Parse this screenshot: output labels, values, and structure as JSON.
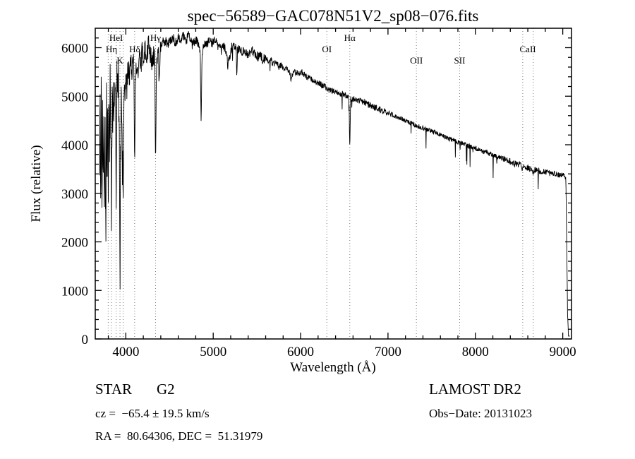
{
  "annotations": {
    "object_type": "STAR",
    "subclass": "G2",
    "survey": "LAMOST DR2",
    "cz": "cz =  −65.4 ± 19.5 km/s",
    "obs_date": "Obs−Date: 20131023",
    "ra_dec": "RA =  80.64306, DEC =  51.31979"
  },
  "chart_data": {
    "type": "line",
    "title": "spec−56589−GAC078N51V2_sp08−076.fits",
    "xlabel": "Wavelength (Å)",
    "ylabel": "Flux (relative)",
    "xlim": [
      3650,
      9100
    ],
    "ylim": [
      0,
      6400
    ],
    "x_ticks": [
      4000,
      5000,
      6000,
      7000,
      8000,
      9000
    ],
    "y_ticks": [
      0,
      1000,
      2000,
      3000,
      4000,
      5000,
      6000
    ],
    "x_minor_step": 200,
    "y_minor_step": 200,
    "grid": false,
    "legend": "none",
    "line_color": "#000000",
    "spectral_lines": [
      {
        "label": "",
        "wavelength": 3798,
        "row": 0,
        "draw_line": true
      },
      {
        "label": "Hη",
        "wavelength": 3835,
        "row": 1,
        "draw_line": true
      },
      {
        "label": "HeI",
        "wavelength": 3889,
        "row": 0,
        "draw_line": true
      },
      {
        "label": "K",
        "wavelength": 3933,
        "row": 2,
        "draw_line": true
      },
      {
        "label": "",
        "wavelength": 3969,
        "row": 2,
        "draw_line": true
      },
      {
        "label": "Hδ",
        "wavelength": 4101,
        "row": 1,
        "draw_line": true
      },
      {
        "label": "Hγ",
        "wavelength": 4340,
        "row": 0,
        "draw_line": true
      },
      {
        "label": "OI",
        "wavelength": 6300,
        "row": 1,
        "draw_line": true
      },
      {
        "label": "Hα",
        "wavelength": 6563,
        "row": 0,
        "draw_line": true
      },
      {
        "label": "OII",
        "wavelength": 7325,
        "row": 2,
        "draw_line": true
      },
      {
        "label": "SII",
        "wavelength": 7820,
        "row": 2,
        "draw_line": true
      },
      {
        "label": "CaII",
        "wavelength": 8600,
        "row": 1,
        "draw_line": false
      },
      {
        "label": "",
        "wavelength": 8542,
        "row": 0,
        "draw_line": true
      },
      {
        "label": "",
        "wavelength": 8662,
        "row": 0,
        "draw_line": true
      }
    ],
    "noise_seed": 20131023,
    "noise_regions": [
      {
        "from": 3650,
        "to": 3965,
        "amp": 650
      },
      {
        "from": 3965,
        "to": 4400,
        "amp": 240
      },
      {
        "from": 4400,
        "to": 5600,
        "amp": 100
      },
      {
        "from": 5600,
        "to": 7000,
        "amp": 65
      },
      {
        "from": 7000,
        "to": 8300,
        "amp": 50
      },
      {
        "from": 8300,
        "to": 9040,
        "amp": 65
      },
      {
        "from": 9040,
        "to": 9100,
        "amp": 20
      }
    ],
    "continuum_points": [
      [
        3700,
        3200
      ],
      [
        3706,
        5100
      ],
      [
        3712,
        2400
      ],
      [
        3719,
        5600
      ],
      [
        3726,
        2000
      ],
      [
        3733,
        4600
      ],
      [
        3740,
        3000
      ],
      [
        3748,
        5200
      ],
      [
        3756,
        2600
      ],
      [
        3763,
        4400
      ],
      [
        3770,
        1800
      ],
      [
        3778,
        4800
      ],
      [
        3786,
        3400
      ],
      [
        3792,
        5200
      ],
      [
        3798,
        2900
      ],
      [
        3806,
        5000
      ],
      [
        3813,
        4000
      ],
      [
        3820,
        5300
      ],
      [
        3828,
        4500
      ],
      [
        3835,
        2700
      ],
      [
        3843,
        4900
      ],
      [
        3851,
        4300
      ],
      [
        3858,
        5400
      ],
      [
        3866,
        4600
      ],
      [
        3874,
        5600
      ],
      [
        3882,
        4800
      ],
      [
        3889,
        3300
      ],
      [
        3897,
        5300
      ],
      [
        3905,
        4700
      ],
      [
        3913,
        5500
      ],
      [
        3921,
        4400
      ],
      [
        3928,
        3500
      ],
      [
        3933,
        1200
      ],
      [
        3940,
        3800
      ],
      [
        3948,
        4900
      ],
      [
        3955,
        4200
      ],
      [
        3962,
        3400
      ],
      [
        3969,
        2800
      ],
      [
        3977,
        4600
      ],
      [
        3985,
        5400
      ],
      [
        3993,
        5000
      ],
      [
        4000,
        5600
      ],
      [
        4012,
        5100
      ],
      [
        4025,
        5700
      ],
      [
        4040,
        5300
      ],
      [
        4055,
        5800
      ],
      [
        4070,
        5500
      ],
      [
        4085,
        5900
      ],
      [
        4094,
        5500
      ],
      [
        4101,
        3400
      ],
      [
        4110,
        5500
      ],
      [
        4125,
        5700
      ],
      [
        4140,
        5500
      ],
      [
        4155,
        5800
      ],
      [
        4170,
        5600
      ],
      [
        4185,
        5900
      ],
      [
        4200,
        5700
      ],
      [
        4220,
        6000
      ],
      [
        4240,
        5800
      ],
      [
        4260,
        6050
      ],
      [
        4280,
        5900
      ],
      [
        4300,
        5750
      ],
      [
        4318,
        5850
      ],
      [
        4330,
        5800
      ],
      [
        4340,
        3450
      ],
      [
        4352,
        5750
      ],
      [
        4370,
        5950
      ],
      [
        4383,
        5250
      ],
      [
        4396,
        5950
      ],
      [
        4420,
        6100
      ],
      [
        4450,
        6150
      ],
      [
        4480,
        6050
      ],
      [
        4510,
        6150
      ],
      [
        4540,
        6200
      ],
      [
        4570,
        6100
      ],
      [
        4600,
        6200
      ],
      [
        4630,
        6150
      ],
      [
        4660,
        6250
      ],
      [
        4690,
        6150
      ],
      [
        4720,
        6250
      ],
      [
        4750,
        6150
      ],
      [
        4780,
        6100
      ],
      [
        4810,
        6150
      ],
      [
        4840,
        6050
      ],
      [
        4852,
        5900
      ],
      [
        4861,
        4400
      ],
      [
        4872,
        5900
      ],
      [
        4900,
        6100
      ],
      [
        4930,
        6050
      ],
      [
        4960,
        6150
      ],
      [
        4990,
        6100
      ],
      [
        5020,
        6150
      ],
      [
        5050,
        6050
      ],
      [
        5080,
        6000
      ],
      [
        5110,
        6050
      ],
      [
        5140,
        5950
      ],
      [
        5167,
        5650
      ],
      [
        5180,
        5750
      ],
      [
        5210,
        6000
      ],
      [
        5240,
        6050
      ],
      [
        5264,
        5950
      ],
      [
        5270,
        5450
      ],
      [
        5278,
        5950
      ],
      [
        5300,
        6000
      ],
      [
        5330,
        5900
      ],
      [
        5360,
        5950
      ],
      [
        5390,
        5850
      ],
      [
        5420,
        5900
      ],
      [
        5450,
        5950
      ],
      [
        5480,
        5850
      ],
      [
        5510,
        5800
      ],
      [
        5540,
        5850
      ],
      [
        5570,
        5750
      ],
      [
        5600,
        5800
      ],
      [
        5630,
        5700
      ],
      [
        5660,
        5750
      ],
      [
        5690,
        5650
      ],
      [
        5720,
        5700
      ],
      [
        5750,
        5600
      ],
      [
        5780,
        5650
      ],
      [
        5810,
        5550
      ],
      [
        5840,
        5600
      ],
      [
        5880,
        5450
      ],
      [
        5893,
        5300
      ],
      [
        5905,
        5450
      ],
      [
        5940,
        5500
      ],
      [
        5980,
        5450
      ],
      [
        6020,
        5500
      ],
      [
        6060,
        5400
      ],
      [
        6100,
        5380
      ],
      [
        6140,
        5320
      ],
      [
        6180,
        5300
      ],
      [
        6220,
        5250
      ],
      [
        6260,
        5220
      ],
      [
        6300,
        5150
      ],
      [
        6340,
        5120
      ],
      [
        6380,
        5100
      ],
      [
        6420,
        5080
      ],
      [
        6460,
        5050
      ],
      [
        6500,
        5030
      ],
      [
        6540,
        5000
      ],
      [
        6555,
        4950
      ],
      [
        6563,
        3900
      ],
      [
        6572,
        4950
      ],
      [
        6610,
        4950
      ],
      [
        6650,
        4920
      ],
      [
        6690,
        4900
      ],
      [
        6730,
        4870
      ],
      [
        6770,
        4830
      ],
      [
        6810,
        4800
      ],
      [
        6850,
        4770
      ],
      [
        6890,
        4740
      ],
      [
        6930,
        4710
      ],
      [
        6970,
        4680
      ],
      [
        7010,
        4650
      ],
      [
        7060,
        4610
      ],
      [
        7110,
        4570
      ],
      [
        7160,
        4530
      ],
      [
        7210,
        4490
      ],
      [
        7260,
        4450
      ],
      [
        7310,
        4410
      ],
      [
        7360,
        4370
      ],
      [
        7410,
        4340
      ],
      [
        7460,
        4300
      ],
      [
        7510,
        4270
      ],
      [
        7560,
        4230
      ],
      [
        7610,
        4190
      ],
      [
        7660,
        4160
      ],
      [
        7710,
        4120
      ],
      [
        7760,
        4090
      ],
      [
        7810,
        4050
      ],
      [
        7860,
        4020
      ],
      [
        7910,
        3980
      ],
      [
        7960,
        3950
      ],
      [
        8010,
        3920
      ],
      [
        8060,
        3880
      ],
      [
        8110,
        3850
      ],
      [
        8160,
        3820
      ],
      [
        8210,
        3780
      ],
      [
        8260,
        3750
      ],
      [
        8310,
        3720
      ],
      [
        8360,
        3680
      ],
      [
        8410,
        3650
      ],
      [
        8460,
        3600
      ],
      [
        8500,
        3600
      ],
      [
        8530,
        3560
      ],
      [
        8542,
        3480
      ],
      [
        8560,
        3560
      ],
      [
        8600,
        3530
      ],
      [
        8650,
        3470
      ],
      [
        8662,
        3400
      ],
      [
        8680,
        3480
      ],
      [
        8720,
        3470
      ],
      [
        8760,
        3450
      ],
      [
        8800,
        3430
      ],
      [
        8840,
        3420
      ],
      [
        8880,
        3400
      ],
      [
        8920,
        3390
      ],
      [
        8960,
        3370
      ],
      [
        9000,
        3360
      ],
      [
        9020,
        3350
      ],
      [
        9035,
        3340
      ],
      [
        9045,
        2000
      ],
      [
        9055,
        500
      ],
      [
        9065,
        80
      ],
      [
        9075,
        50
      ]
    ]
  }
}
